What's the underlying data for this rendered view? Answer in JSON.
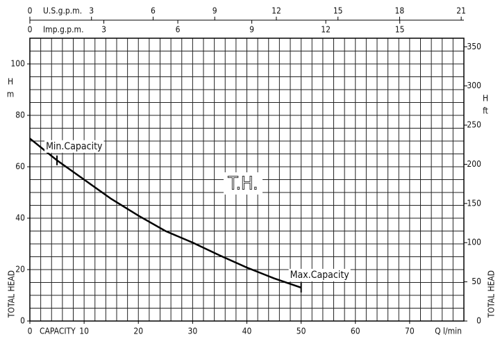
{
  "chart_data": {
    "type": "line",
    "x": [
      0,
      5,
      10,
      15,
      20,
      25,
      30,
      35,
      40,
      45,
      50
    ],
    "series": [
      {
        "color": "#000000",
        "values": [
          71,
          62.5,
          55,
          47.5,
          41,
          35,
          30.5,
          25.5,
          20.8,
          16.6,
          13
        ]
      }
    ],
    "xlim": [
      0,
      80
    ],
    "xticks": [
      0,
      10,
      20,
      30,
      40,
      50,
      60,
      70
    ],
    "ylim": [
      0,
      110
    ],
    "yticks": [
      0,
      20,
      40,
      60,
      80,
      100
    ],
    "y2lim": [
      0,
      360.9
    ],
    "y2ticks": [
      0,
      50,
      100,
      150,
      200,
      250,
      300,
      350
    ],
    "grid": true,
    "grid_step": {
      "x": 2,
      "y": 5
    },
    "top_axes": [
      {
        "label": "U.S.g.p.m.",
        "lim": [
          0,
          21.13
        ],
        "ticks": [
          0,
          3,
          6,
          9,
          12,
          15,
          18,
          21
        ]
      },
      {
        "label": "Imp.g.p.m.",
        "lim": [
          0,
          17.6
        ],
        "ticks": [
          0,
          3,
          6,
          9,
          12,
          15
        ]
      }
    ],
    "xlabel": "CAPACITY",
    "xunit": "Q  l/min",
    "ylabel": "TOTAL HEAD",
    "ylabel_symbol": "H",
    "ylabel_unit": "m",
    "y2label": "TOTAL HEAD",
    "y2label_symbol": "H",
    "y2label_unit": "ft",
    "curve_label": "T.H.",
    "annotations": [
      {
        "text": "Min.Capacity",
        "x": 5
      },
      {
        "text": "Max.Capacity",
        "x": 50
      }
    ]
  }
}
